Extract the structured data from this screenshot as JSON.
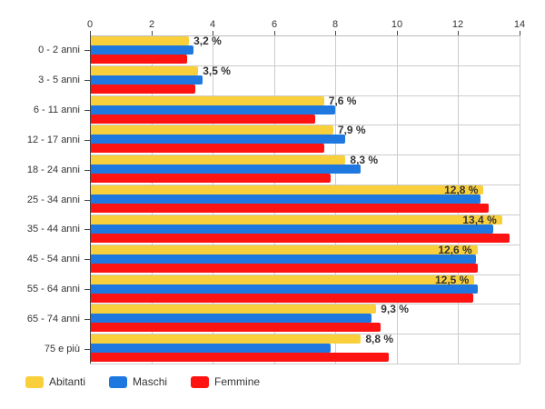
{
  "chart_data": {
    "type": "bar",
    "orientation": "horizontal",
    "title": "",
    "xlabel": "",
    "ylabel": "",
    "xlim": [
      0,
      14
    ],
    "x_ticks": [
      0,
      2,
      4,
      6,
      8,
      10,
      12,
      14
    ],
    "grid": true,
    "legend_position": "bottom-left",
    "categories": [
      "0 - 2 anni",
      "3 - 5 anni",
      "6 - 11 anni",
      "12 - 17 anni",
      "18 - 24 anni",
      "25 - 34 anni",
      "35 - 44 anni",
      "45 - 54 anni",
      "55 - 64 anni",
      "65 - 74 anni",
      "75 e più"
    ],
    "series": [
      {
        "name": "Abitanti",
        "color": "#F9D03C",
        "values": [
          3.2,
          3.5,
          7.6,
          7.9,
          8.3,
          12.8,
          13.4,
          12.6,
          12.5,
          9.3,
          8.8
        ]
      },
      {
        "name": "Maschi",
        "color": "#1E78E0",
        "values": [
          3.35,
          3.65,
          7.95,
          8.3,
          8.8,
          12.7,
          13.1,
          12.55,
          12.6,
          9.15,
          7.8
        ]
      },
      {
        "name": "Femmine",
        "color": "#FC1312",
        "values": [
          3.15,
          3.4,
          7.3,
          7.6,
          7.8,
          12.95,
          13.65,
          12.6,
          12.45,
          9.45,
          9.7
        ]
      }
    ],
    "value_labels": [
      "3,2 %",
      "3,5 %",
      "7,6 %",
      "7,9 %",
      "8,3 %",
      "12,8 %",
      "13,4 %",
      "12,6 %",
      "12,5 %",
      "9,3 %",
      "8,8 %"
    ],
    "colors": {
      "grid": "#cccccc",
      "axis_top": "#bbbbbb",
      "axis_left": "#444444",
      "tick": "#444444",
      "text": "#333333"
    }
  },
  "legend": {
    "items": [
      {
        "label": "Abitanti",
        "color": "#F9D03C"
      },
      {
        "label": "Maschi",
        "color": "#1E78E0"
      },
      {
        "label": "Femmine",
        "color": "#FC1312"
      }
    ]
  }
}
